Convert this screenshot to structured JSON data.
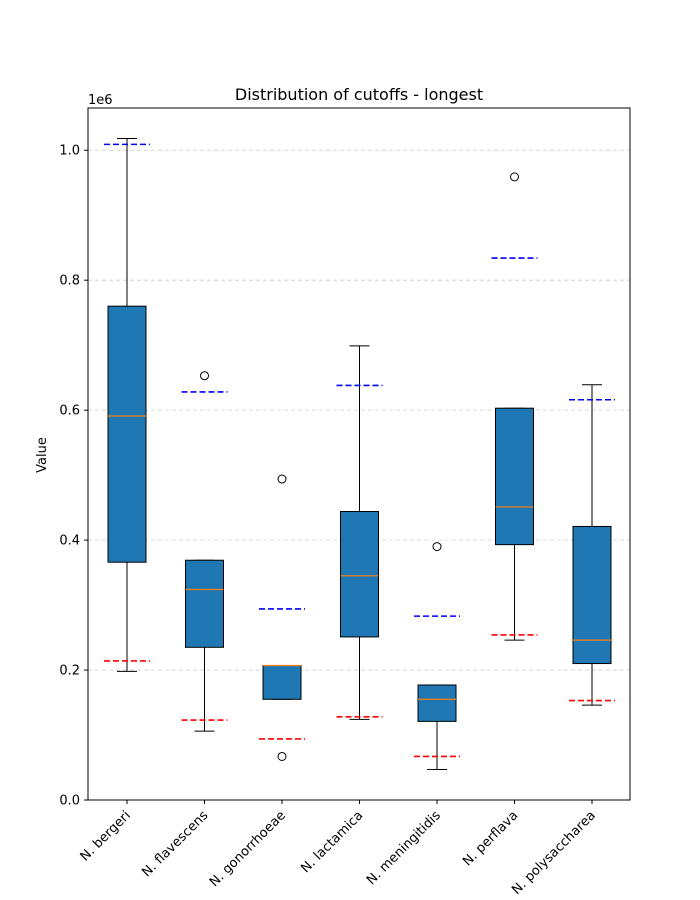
{
  "chart_data": {
    "type": "boxplot",
    "title": "Distribution of cutoffs - longest",
    "ylabel": "Value",
    "xlabel": "",
    "y_scale_label": "1e6",
    "ylim": [
      0,
      1065000
    ],
    "y_ticks": [
      0,
      200000,
      400000,
      600000,
      800000,
      1000000
    ],
    "y_tick_labels": [
      "0.0",
      "0.2",
      "0.4",
      "0.6",
      "0.8",
      "1.0"
    ],
    "grid": "horizontal dashed",
    "categories": [
      "N. bergeri",
      "N. flavescens",
      "N. gonorrhoeae",
      "N. lactamica",
      "N. meningitidis",
      "N. perflava",
      "N. polysaccharea"
    ],
    "boxes": [
      {
        "whisker_low": 198000,
        "q1": 366000,
        "median": 591000,
        "q3": 760000,
        "whisker_high": 1018000,
        "outliers": [],
        "upper_cutoff": 1009000,
        "lower_cutoff": 214000
      },
      {
        "whisker_low": 106000,
        "q1": 235000,
        "median": 324000,
        "q3": 369000,
        "whisker_high": 369000,
        "outliers": [
          653000
        ],
        "upper_cutoff": 628000,
        "lower_cutoff": 123000
      },
      {
        "whisker_low": 155000,
        "q1": 155000,
        "median": 207000,
        "q3": 207000,
        "whisker_high": 207000,
        "outliers": [
          494000,
          67000
        ],
        "upper_cutoff": 294000,
        "lower_cutoff": 94000
      },
      {
        "whisker_low": 124000,
        "q1": 251000,
        "median": 345000,
        "q3": 444000,
        "whisker_high": 699000,
        "outliers": [],
        "upper_cutoff": 638000,
        "lower_cutoff": 128000
      },
      {
        "whisker_low": 47000,
        "q1": 121000,
        "median": 155000,
        "q3": 177000,
        "whisker_high": 177000,
        "outliers": [
          390000
        ],
        "upper_cutoff": 283000,
        "lower_cutoff": 67000
      },
      {
        "whisker_low": 246000,
        "q1": 393000,
        "median": 451000,
        "q3": 603000,
        "whisker_high": 603000,
        "outliers": [
          959000
        ],
        "upper_cutoff": 834000,
        "lower_cutoff": 254000
      },
      {
        "whisker_low": 146000,
        "q1": 210000,
        "median": 246000,
        "q3": 421000,
        "whisker_high": 639000,
        "outliers": [],
        "upper_cutoff": 616000,
        "lower_cutoff": 153000
      }
    ],
    "colors": {
      "box_fill": "#1f77b4",
      "median": "#ff7f0e",
      "upper_cutoff": "#0000ff",
      "lower_cutoff": "#ff0000",
      "grid": "#cccccc"
    }
  }
}
